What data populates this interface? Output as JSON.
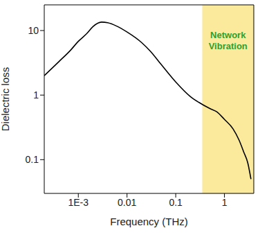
{
  "chart_data": {
    "type": "line",
    "x_label": "Frequency (THz)",
    "y_label": "Dielectric loss",
    "log": true,
    "x": [
      0.0002,
      0.0004,
      0.0007,
      0.001,
      0.0015,
      0.002,
      0.003,
      0.004,
      0.006,
      0.01,
      0.02,
      0.03,
      0.05,
      0.1,
      0.2,
      0.3,
      0.5,
      0.7,
      1,
      1.5,
      2,
      2.5,
      3,
      3.5
    ],
    "values": [
      2.0,
      3.3,
      5.0,
      6.8,
      9.0,
      11.5,
      13.5,
      13.2,
      11.8,
      9.5,
      6.5,
      4.8,
      3.0,
      1.6,
      0.95,
      0.77,
      0.62,
      0.55,
      0.42,
      0.3,
      0.2,
      0.13,
      0.09,
      0.05
    ],
    "color": "#000000",
    "xlim": [
      0.0002,
      4
    ],
    "ylim": [
      0.03,
      25
    ],
    "xticks": [
      {
        "value": 0.001,
        "label": "1E-3"
      },
      0.01,
      0.1,
      1
    ],
    "yticks": [
      0.1,
      1,
      10
    ],
    "annotations": [
      {
        "text": "Network Vibration",
        "x_range": [
          0.35,
          4
        ],
        "color": "#2ea02e",
        "fill": "#f7d84a"
      }
    ]
  }
}
